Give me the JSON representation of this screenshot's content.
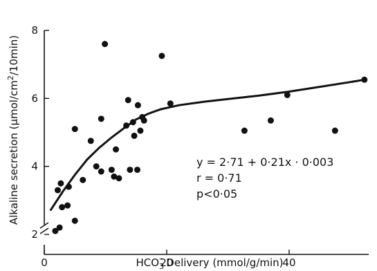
{
  "chart_data": {
    "type": "scatter",
    "title": "",
    "xlabel": "HCO3⁻ Delivery (mmol/g/min)",
    "xlabel_parts": {
      "pre": "HCO",
      "sub": "3",
      "sup": "–",
      "post": " Delivery  (mmol/g/min)"
    },
    "ylabel": "Alkaline secretion (µmol/cm²/10min)",
    "ylabel_parts": {
      "pre": "Alkaline secretion (µmol/cm",
      "sup": "2",
      "post": "/10min)"
    },
    "xlim": [
      0,
      53
    ],
    "ylim": [
      2,
      8
    ],
    "y_axis_break": true,
    "grid": false,
    "x_ticks": [
      0,
      20,
      40
    ],
    "x_tick_labels": [
      "0",
      "20",
      "40"
    ],
    "y_ticks": [
      2,
      4,
      6,
      8
    ],
    "y_tick_labels": [
      "2",
      "4",
      "6",
      "8"
    ],
    "points": [
      {
        "x": 1.8,
        "y": 2.1
      },
      {
        "x": 2.5,
        "y": 2.2
      },
      {
        "x": 2.2,
        "y": 3.3
      },
      {
        "x": 2.7,
        "y": 3.5
      },
      {
        "x": 2.9,
        "y": 2.8
      },
      {
        "x": 3.8,
        "y": 2.85
      },
      {
        "x": 4.0,
        "y": 3.4
      },
      {
        "x": 5.0,
        "y": 2.4
      },
      {
        "x": 5.0,
        "y": 5.1
      },
      {
        "x": 6.3,
        "y": 3.6
      },
      {
        "x": 7.6,
        "y": 4.75
      },
      {
        "x": 8.5,
        "y": 4.0
      },
      {
        "x": 9.3,
        "y": 3.85
      },
      {
        "x": 9.3,
        "y": 5.4
      },
      {
        "x": 9.9,
        "y": 7.6
      },
      {
        "x": 11.0,
        "y": 3.9
      },
      {
        "x": 11.4,
        "y": 3.7
      },
      {
        "x": 11.7,
        "y": 4.5
      },
      {
        "x": 12.2,
        "y": 3.65
      },
      {
        "x": 13.4,
        "y": 5.2
      },
      {
        "x": 13.7,
        "y": 5.95
      },
      {
        "x": 14.0,
        "y": 3.9
      },
      {
        "x": 14.5,
        "y": 5.3
      },
      {
        "x": 14.7,
        "y": 4.9
      },
      {
        "x": 15.2,
        "y": 3.9
      },
      {
        "x": 15.3,
        "y": 5.8
      },
      {
        "x": 15.7,
        "y": 5.05
      },
      {
        "x": 16.0,
        "y": 5.45
      },
      {
        "x": 16.3,
        "y": 5.35
      },
      {
        "x": 19.2,
        "y": 7.25
      },
      {
        "x": 20.6,
        "y": 5.85
      },
      {
        "x": 32.7,
        "y": 5.05
      },
      {
        "x": 37.0,
        "y": 5.35
      },
      {
        "x": 39.7,
        "y": 6.1
      },
      {
        "x": 47.5,
        "y": 5.05
      },
      {
        "x": 52.3,
        "y": 6.55
      }
    ],
    "fit_curve": [
      {
        "x": 1.0,
        "y": 2.7
      },
      {
        "x": 3.0,
        "y": 3.25
      },
      {
        "x": 5.0,
        "y": 3.75
      },
      {
        "x": 7.0,
        "y": 4.2
      },
      {
        "x": 9.0,
        "y": 4.55
      },
      {
        "x": 11.0,
        "y": 4.85
      },
      {
        "x": 13.0,
        "y": 5.12
      },
      {
        "x": 15.0,
        "y": 5.38
      },
      {
        "x": 17.0,
        "y": 5.55
      },
      {
        "x": 19.0,
        "y": 5.68
      },
      {
        "x": 22.0,
        "y": 5.8
      },
      {
        "x": 26.0,
        "y": 5.9
      },
      {
        "x": 30.0,
        "y": 5.98
      },
      {
        "x": 35.0,
        "y": 6.08
      },
      {
        "x": 40.0,
        "y": 6.2
      },
      {
        "x": 45.0,
        "y": 6.34
      },
      {
        "x": 50.0,
        "y": 6.48
      },
      {
        "x": 52.3,
        "y": 6.55
      }
    ],
    "annotations": [
      "y = 2·71 + 0·21x · 0·003",
      "r = 0·71",
      "p<0·05"
    ]
  }
}
